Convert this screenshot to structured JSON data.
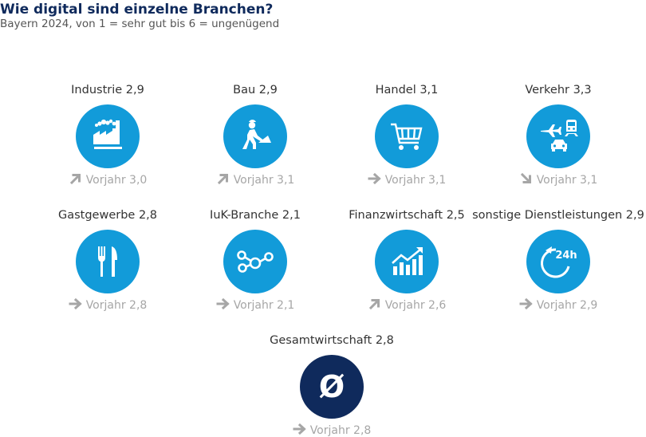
{
  "header": {
    "title": "Wie digital sind einzelne Branchen?",
    "subtitle": "Bayern 2024, von 1 = sehr gut bis 6 = ungenügend"
  },
  "colors": {
    "circle": "#129bd9",
    "circle_total": "#0f2a5c",
    "trend_arrow": "#a6a6a6",
    "title": "#0f2a5c"
  },
  "trend_icons": {
    "up": "arrow-up-right-icon",
    "right": "arrow-right-icon",
    "down": "arrow-down-right-icon"
  },
  "chart_data": {
    "type": "table",
    "title": "Wie digital sind einzelne Branchen?",
    "subtitle": "Bayern 2024, von 1 = sehr gut bis 6 = ungenügend",
    "items": [
      {
        "label": "Industrie 2,9",
        "sector": "Industrie",
        "value": 2.9,
        "prev_label": "Vorjahr 3,0",
        "prev_value": 3.0,
        "trend": "up",
        "icon": "factory-icon"
      },
      {
        "label": "Bau 2,9",
        "sector": "Bau",
        "value": 2.9,
        "prev_label": "Vorjahr 3,1",
        "prev_value": 3.1,
        "trend": "up",
        "icon": "construction-worker-icon"
      },
      {
        "label": "Handel 3,1",
        "sector": "Handel",
        "value": 3.1,
        "prev_label": "Vorjahr 3,1",
        "prev_value": 3.1,
        "trend": "right",
        "icon": "shopping-cart-icon"
      },
      {
        "label": "Verkehr 3,3",
        "sector": "Verkehr",
        "value": 3.3,
        "prev_label": "Vorjahr 3,1",
        "prev_value": 3.1,
        "trend": "down",
        "icon": "transport-icon"
      },
      {
        "label": "Gastgewerbe 2,8",
        "sector": "Gastgewerbe",
        "value": 2.8,
        "prev_label": "Vorjahr 2,8",
        "prev_value": 2.8,
        "trend": "right",
        "icon": "fork-knife-icon"
      },
      {
        "label": "IuK-Branche 2,1",
        "sector": "IuK-Branche",
        "value": 2.1,
        "prev_label": "Vorjahr 2,1",
        "prev_value": 2.1,
        "trend": "right",
        "icon": "network-nodes-icon"
      },
      {
        "label": "Finanzwirtschaft 2,5",
        "sector": "Finanzwirtschaft",
        "value": 2.5,
        "prev_label": "Vorjahr 2,6",
        "prev_value": 2.6,
        "trend": "up",
        "icon": "growth-chart-icon"
      },
      {
        "label": "sonstige Dienstleistungen 2,9",
        "sector": "sonstige Dienstleistungen",
        "value": 2.9,
        "prev_label": "Vorjahr 2,9",
        "prev_value": 2.9,
        "trend": "right",
        "icon": "24h-service-icon"
      },
      {
        "label": "Gesamtwirtschaft 2,8",
        "sector": "Gesamtwirtschaft",
        "value": 2.8,
        "prev_label": "Vorjahr 2,8",
        "prev_value": 2.8,
        "trend": "right",
        "icon": "average-symbol-icon",
        "circle_text": "Ø"
      }
    ]
  }
}
